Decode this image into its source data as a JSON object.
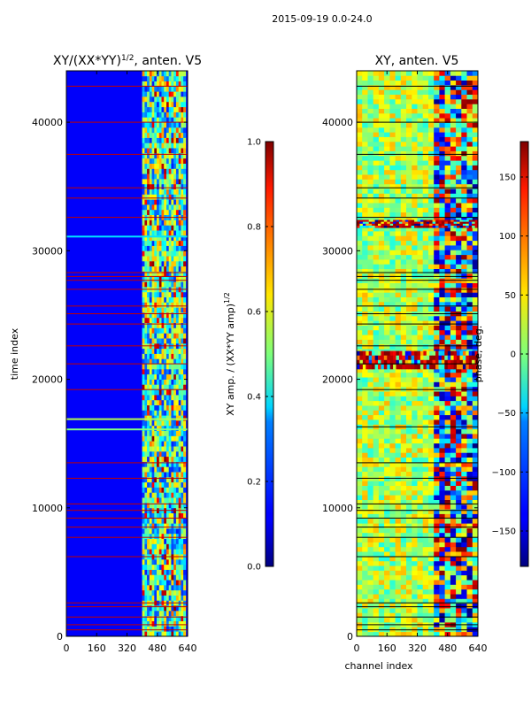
{
  "suptitle": "2015-09-19 0.0-24.0",
  "chart_data": [
    {
      "type": "heatmap",
      "title": "XY/(XX*YY)^(1/2), anten. V5",
      "title_main": "XY/(XX*YY)",
      "title_exp": "1/2",
      "title_tail": ", anten. V5",
      "xlabel": "",
      "ylabel": "time index",
      "xlim": [
        0,
        640
      ],
      "ylim": [
        0,
        44000
      ],
      "xticks": [
        0,
        160,
        320,
        480,
        640
      ],
      "yticks": [
        0,
        10000,
        20000,
        30000,
        40000
      ],
      "colorbar": {
        "label_main": "XY amp. / (XX*YY amp)",
        "label_exp": "1/2",
        "range": [
          0.0,
          1.0
        ],
        "ticks": [
          "0.0",
          "0.2",
          "0.4",
          "0.6",
          "0.8",
          "1.0"
        ],
        "colormap": "jet"
      },
      "background_value": 0.12,
      "active_channel_start": 400,
      "active_channel_end": 630,
      "flagged_rows": [
        500,
        900,
        1500,
        2300,
        2600,
        6200,
        7700,
        8500,
        9200,
        9800,
        10300,
        12300,
        13500,
        19200,
        21200,
        22600,
        24300,
        25100,
        25700,
        27000,
        27700,
        28000,
        28300,
        32600,
        34100,
        34900,
        37500,
        40000,
        42800
      ],
      "horizontal_features": [
        {
          "t": 16100,
          "value": 0.5
        },
        {
          "t": 16900,
          "value": 0.55
        },
        {
          "t": 31100,
          "value": 0.35
        }
      ]
    },
    {
      "type": "heatmap",
      "title": "XY, anten. V5",
      "xlabel": "channel index",
      "ylabel": "",
      "xlim": [
        0,
        640
      ],
      "ylim": [
        0,
        44000
      ],
      "xticks": [
        0,
        160,
        320,
        480,
        640
      ],
      "yticks": [
        0,
        10000,
        20000,
        30000,
        40000
      ],
      "colorbar": {
        "label": "phase, deg.",
        "range": [
          -180,
          180
        ],
        "ticks": [
          "−150",
          "−100",
          "−50",
          "0",
          "50",
          "100",
          "150"
        ],
        "colormap": "jet"
      },
      "background_value": 0,
      "noisy_bands": [
        {
          "from": 20800,
          "to": 22200
        },
        {
          "from": 31800,
          "to": 32400
        }
      ],
      "flagged_rows": [
        500,
        900,
        1500,
        2300,
        2600,
        6200,
        7700,
        8500,
        9200,
        9800,
        10300,
        12300,
        13500,
        16300,
        19200,
        21200,
        22600,
        24300,
        25100,
        25700,
        27000,
        27700,
        28000,
        28300,
        32600,
        34100,
        34900,
        37500,
        40000,
        42800
      ]
    }
  ]
}
